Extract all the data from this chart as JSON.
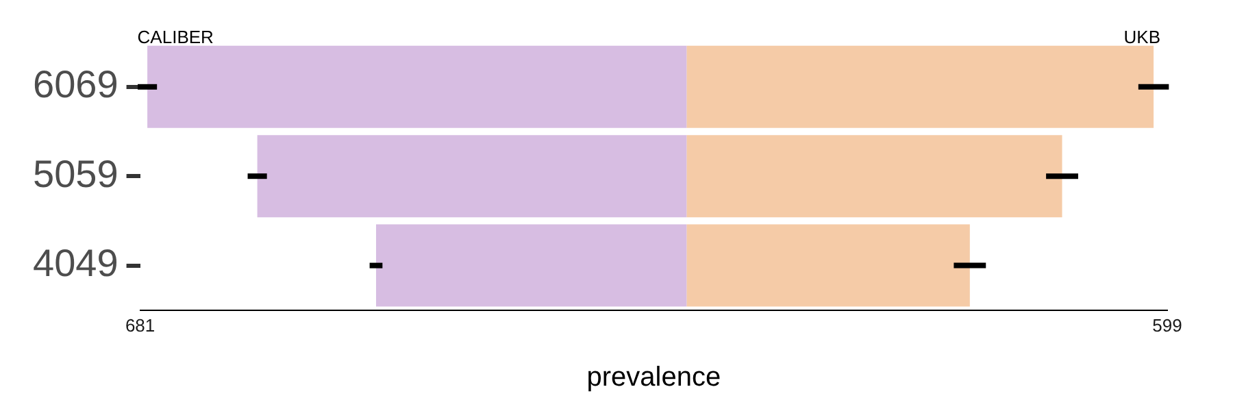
{
  "chart_data": {
    "type": "bar",
    "orientation": "horizontal",
    "stacked": true,
    "xlabel": "prevalence",
    "categories": [
      "6069",
      "5059",
      "4049"
    ],
    "series": [
      {
        "name": "CALIBER",
        "color": "#d7bde2",
        "values": [
          -672,
          -535,
          -387
        ],
        "errors": [
          12,
          12,
          8
        ]
      },
      {
        "name": "UKB",
        "color": "#f5cba7",
        "values": [
          582,
          468,
          353
        ],
        "errors": [
          19,
          20,
          20
        ]
      }
    ],
    "xlim": [
      -681,
      599
    ],
    "xticks": [
      {
        "value": -681,
        "label": "681"
      },
      {
        "value": 599,
        "label": "599"
      }
    ],
    "grid": false,
    "legend": false
  }
}
